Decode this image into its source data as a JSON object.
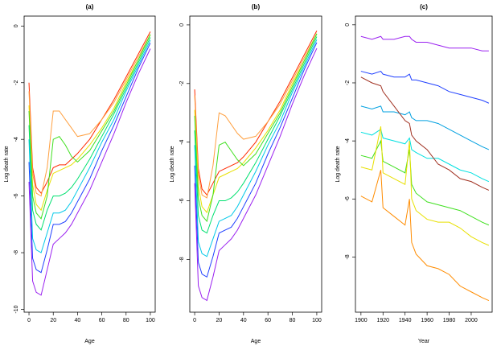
{
  "chart_data": [
    {
      "type": "line",
      "title": "(a)",
      "xlabel": "Age",
      "ylabel": "Log death rate",
      "x": [
        0,
        3,
        6,
        10,
        15,
        20,
        25,
        30,
        35,
        40,
        50,
        60,
        70,
        80,
        90,
        100
      ],
      "xlim": [
        -4,
        104
      ],
      "xticks": [
        0,
        20,
        40,
        60,
        80,
        100
      ],
      "ylim": [
        -10.1,
        0.35
      ],
      "yticks": [
        -10,
        -8,
        -6,
        -4,
        -2,
        0
      ],
      "series": [
        {
          "color": "#ff2a00",
          "values": [
            -2.0,
            -5.0,
            -5.7,
            -5.9,
            -5.5,
            -5.0,
            -4.9,
            -4.9,
            -4.7,
            -4.5,
            -4.0,
            -3.3,
            -2.6,
            -1.8,
            -1.0,
            -0.2
          ]
        },
        {
          "color": "#ffa040",
          "values": [
            -2.3,
            -5.2,
            -5.9,
            -6.0,
            -5.0,
            -3.0,
            -3.0,
            -3.3,
            -3.6,
            -3.9,
            -3.8,
            -3.3,
            -2.7,
            -1.9,
            -1.1,
            -0.3
          ]
        },
        {
          "color": "#e8e000",
          "values": [
            -2.8,
            -5.6,
            -6.3,
            -6.5,
            -5.8,
            -5.2,
            -5.1,
            -5.0,
            -4.9,
            -4.7,
            -4.2,
            -3.6,
            -2.9,
            -2.0,
            -1.2,
            -0.3
          ]
        },
        {
          "color": "#40e020",
          "values": [
            -3.0,
            -6.0,
            -6.6,
            -6.8,
            -6.0,
            -4.0,
            -3.9,
            -4.2,
            -4.6,
            -4.8,
            -4.4,
            -3.7,
            -3.0,
            -2.1,
            -1.2,
            -0.3
          ]
        },
        {
          "color": "#00e070",
          "values": [
            -3.5,
            -6.5,
            -7.0,
            -7.2,
            -6.5,
            -6.0,
            -6.0,
            -5.9,
            -5.7,
            -5.4,
            -4.7,
            -3.9,
            -3.1,
            -2.2,
            -1.3,
            -0.4
          ]
        },
        {
          "color": "#00c8e8",
          "values": [
            -4.0,
            -7.5,
            -7.9,
            -8.0,
            -7.3,
            -6.6,
            -6.6,
            -6.5,
            -6.2,
            -5.8,
            -5.0,
            -4.1,
            -3.3,
            -2.3,
            -1.4,
            -0.5
          ]
        },
        {
          "color": "#2040ff",
          "values": [
            -4.8,
            -8.2,
            -8.6,
            -8.7,
            -7.9,
            -7.0,
            -7.0,
            -6.9,
            -6.6,
            -6.2,
            -5.4,
            -4.4,
            -3.5,
            -2.5,
            -1.5,
            -0.6
          ]
        },
        {
          "color": "#9a20f0",
          "values": [
            -5.5,
            -9.0,
            -9.4,
            -9.5,
            -8.6,
            -7.7,
            -7.5,
            -7.3,
            -7.0,
            -6.6,
            -5.8,
            -4.8,
            -3.8,
            -2.7,
            -1.7,
            -0.8
          ]
        }
      ]
    },
    {
      "type": "line",
      "title": "(b)",
      "xlabel": "Age",
      "ylabel": "Log death rate",
      "x": [
        0,
        3,
        6,
        10,
        15,
        20,
        25,
        30,
        35,
        40,
        50,
        60,
        70,
        80,
        90,
        100
      ],
      "xlim": [
        -4,
        104
      ],
      "xticks": [
        0,
        20,
        40,
        60,
        80,
        100
      ],
      "ylim": [
        -9.8,
        0.3
      ],
      "yticks": [
        -8,
        -6,
        -4,
        -2,
        0
      ],
      "series": [
        {
          "color": "#ff2a00",
          "values": [
            -2.2,
            -4.9,
            -5.6,
            -5.8,
            -5.4,
            -5.0,
            -4.9,
            -4.8,
            -4.7,
            -4.5,
            -4.0,
            -3.3,
            -2.6,
            -1.8,
            -1.0,
            -0.2
          ]
        },
        {
          "color": "#ffa040",
          "values": [
            -2.4,
            -5.1,
            -5.8,
            -5.9,
            -4.8,
            -3.0,
            -3.1,
            -3.4,
            -3.7,
            -3.9,
            -3.8,
            -3.3,
            -2.7,
            -1.9,
            -1.1,
            -0.3
          ]
        },
        {
          "color": "#e8e000",
          "values": [
            -2.9,
            -5.5,
            -6.2,
            -6.4,
            -5.8,
            -5.2,
            -5.1,
            -5.0,
            -4.9,
            -4.7,
            -4.2,
            -3.6,
            -2.9,
            -2.0,
            -1.2,
            -0.3
          ]
        },
        {
          "color": "#40e020",
          "values": [
            -3.1,
            -5.9,
            -6.5,
            -6.7,
            -5.8,
            -4.1,
            -4.0,
            -4.3,
            -4.6,
            -4.8,
            -4.4,
            -3.7,
            -3.0,
            -2.1,
            -1.2,
            -0.3
          ]
        },
        {
          "color": "#00e070",
          "values": [
            -3.6,
            -6.5,
            -7.0,
            -7.1,
            -6.5,
            -6.0,
            -6.0,
            -5.9,
            -5.7,
            -5.4,
            -4.7,
            -3.9,
            -3.1,
            -2.2,
            -1.3,
            -0.4
          ]
        },
        {
          "color": "#00c8e8",
          "values": [
            -4.1,
            -7.4,
            -7.8,
            -7.9,
            -7.3,
            -6.7,
            -6.6,
            -6.5,
            -6.2,
            -5.8,
            -5.0,
            -4.1,
            -3.3,
            -2.3,
            -1.4,
            -0.5
          ]
        },
        {
          "color": "#2040ff",
          "values": [
            -4.8,
            -8.1,
            -8.5,
            -8.6,
            -7.9,
            -7.1,
            -7.0,
            -6.9,
            -6.6,
            -6.2,
            -5.4,
            -4.4,
            -3.5,
            -2.5,
            -1.5,
            -0.6
          ]
        },
        {
          "color": "#9a20f0",
          "values": [
            -5.4,
            -8.9,
            -9.3,
            -9.4,
            -8.6,
            -7.7,
            -7.5,
            -7.3,
            -7.0,
            -6.6,
            -5.8,
            -4.8,
            -3.8,
            -2.7,
            -1.7,
            -0.8
          ]
        }
      ]
    },
    {
      "type": "line",
      "title": "(c)",
      "xlabel": "Year",
      "ylabel": "Log death rate",
      "x": [
        1900,
        1910,
        1918,
        1920,
        1930,
        1940,
        1944,
        1946,
        1950,
        1960,
        1970,
        1980,
        1990,
        2000,
        2010,
        2016
      ],
      "xlim": [
        1895,
        2019
      ],
      "xticks": [
        1900,
        1920,
        1940,
        1960,
        1980,
        2000
      ],
      "ylim": [
        -9.9,
        0.3
      ],
      "yticks": [
        -8,
        -6,
        -4,
        -2,
        0
      ],
      "series": [
        {
          "color": "#9a20f0",
          "values": [
            -0.4,
            -0.5,
            -0.4,
            -0.5,
            -0.5,
            -0.4,
            -0.4,
            -0.5,
            -0.6,
            -0.6,
            -0.7,
            -0.8,
            -0.8,
            -0.8,
            -0.9,
            -0.9
          ]
        },
        {
          "color": "#2040ff",
          "values": [
            -1.6,
            -1.7,
            -1.6,
            -1.7,
            -1.8,
            -1.8,
            -1.7,
            -1.9,
            -1.9,
            -2.0,
            -2.1,
            -2.3,
            -2.4,
            -2.5,
            -2.6,
            -2.7
          ]
        },
        {
          "color": "#00a0e0",
          "values": [
            -2.8,
            -2.9,
            -2.8,
            -3.0,
            -3.0,
            -3.1,
            -3.0,
            -3.2,
            -3.3,
            -3.3,
            -3.4,
            -3.6,
            -3.8,
            -4.0,
            -4.2,
            -4.3
          ]
        },
        {
          "color": "#00e0e0",
          "values": [
            -3.7,
            -3.8,
            -3.6,
            -3.9,
            -4.0,
            -4.1,
            -3.9,
            -4.3,
            -4.4,
            -4.6,
            -4.6,
            -4.8,
            -5.0,
            -5.1,
            -5.3,
            -5.4
          ]
        },
        {
          "color": "#40e020",
          "values": [
            -4.5,
            -4.6,
            -4.0,
            -4.7,
            -4.9,
            -5.1,
            -4.3,
            -5.5,
            -5.8,
            -6.1,
            -6.2,
            -6.3,
            -6.4,
            -6.6,
            -6.8,
            -6.9
          ]
        },
        {
          "color": "#e8e000",
          "values": [
            -4.9,
            -5.0,
            -3.5,
            -5.1,
            -5.3,
            -5.5,
            -4.0,
            -6.0,
            -6.4,
            -6.7,
            -6.8,
            -6.8,
            -7.0,
            -7.3,
            -7.5,
            -7.6
          ]
        },
        {
          "color": "#ff8c00",
          "values": [
            -5.9,
            -6.1,
            -5.0,
            -6.3,
            -6.6,
            -6.9,
            -6.0,
            -7.5,
            -7.9,
            -8.3,
            -8.4,
            -8.6,
            -9.0,
            -9.2,
            -9.4,
            -9.5
          ]
        },
        {
          "color": "#a03020",
          "values": [
            -1.8,
            -2.0,
            -2.1,
            -2.3,
            -2.8,
            -3.3,
            -3.4,
            -3.8,
            -4.0,
            -4.3,
            -4.8,
            -5.0,
            -5.3,
            -5.4,
            -5.6,
            -5.7
          ]
        }
      ]
    }
  ]
}
